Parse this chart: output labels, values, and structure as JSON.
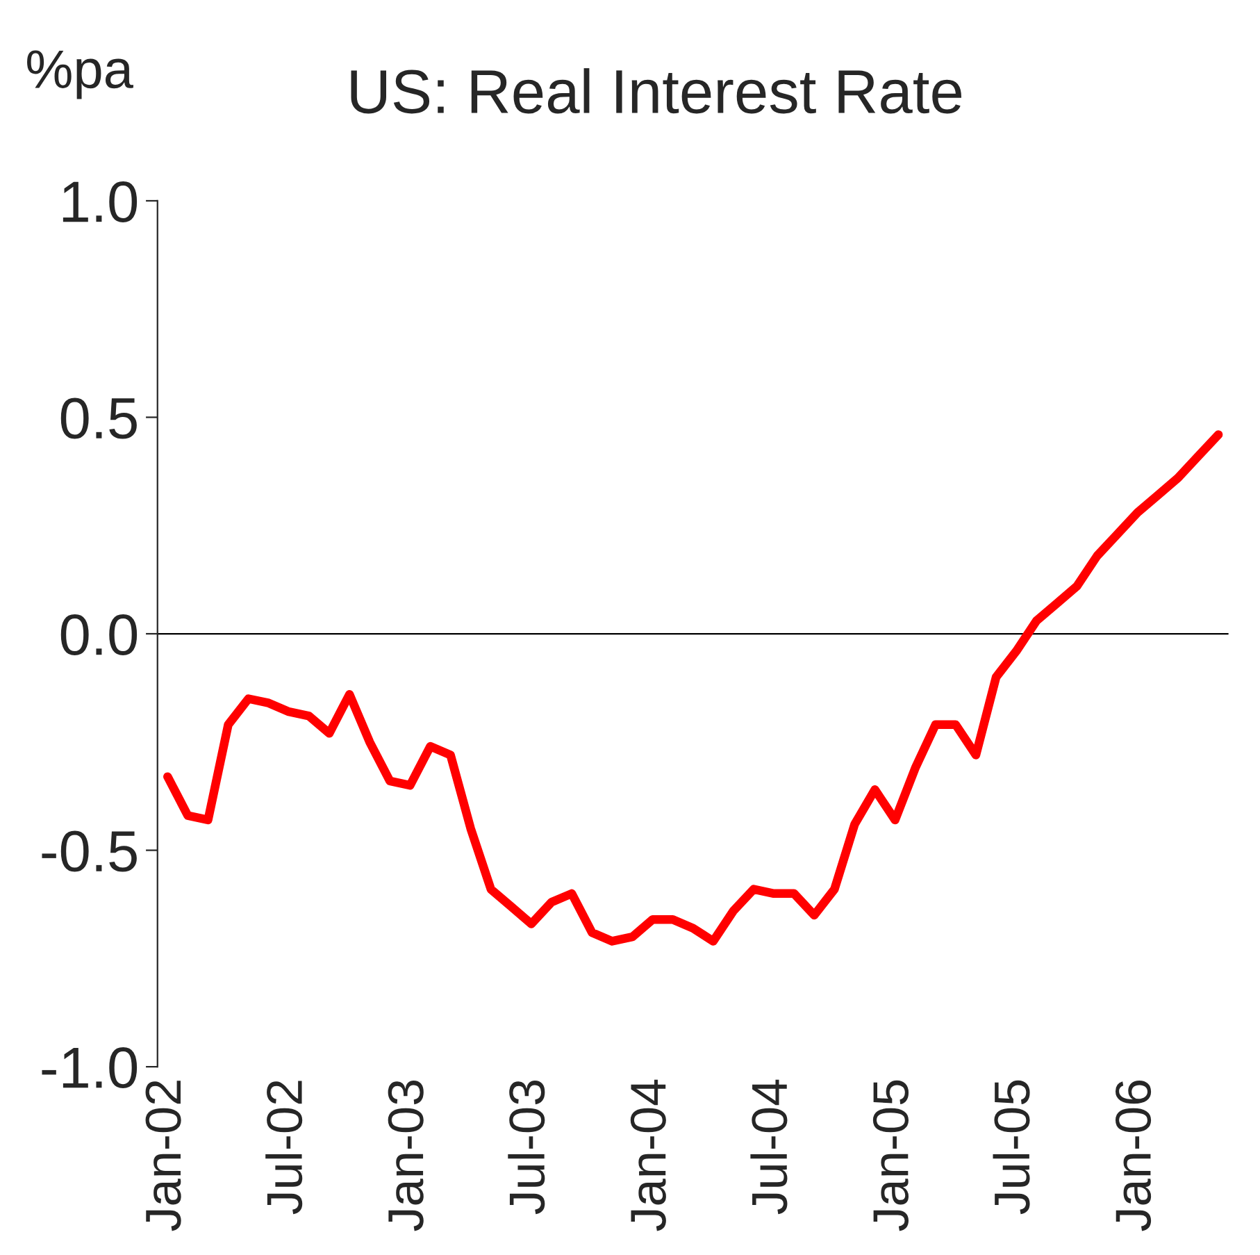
{
  "chart_data": {
    "type": "line",
    "title": "US: Real Interest Rate",
    "ylabel": "%pa",
    "categories": [
      "Jan-02",
      null,
      null,
      null,
      null,
      null,
      "Jul-02",
      null,
      null,
      null,
      null,
      null,
      "Jan-03",
      null,
      null,
      null,
      null,
      null,
      "Jul-03",
      null,
      null,
      null,
      null,
      null,
      "Jan-04",
      null,
      null,
      null,
      null,
      null,
      "Jul-04",
      null,
      null,
      null,
      null,
      null,
      "Jan-05",
      null,
      null,
      null,
      null,
      null,
      "Jul-05",
      null,
      null,
      null,
      null,
      null,
      "Jan-06",
      null,
      null,
      null,
      null
    ],
    "series": [
      {
        "color": "#ff0000",
        "values": [
          -0.33,
          -0.42,
          -0.43,
          -0.21,
          -0.15,
          -0.16,
          -0.18,
          -0.19,
          -0.23,
          -0.14,
          -0.25,
          -0.34,
          -0.35,
          -0.26,
          -0.28,
          -0.45,
          -0.59,
          -0.63,
          -0.67,
          -0.62,
          -0.6,
          -0.69,
          -0.71,
          -0.7,
          -0.66,
          -0.66,
          -0.68,
          -0.71,
          -0.64,
          -0.59,
          -0.6,
          -0.6,
          -0.65,
          -0.59,
          -0.44,
          -0.36,
          -0.43,
          -0.31,
          -0.21,
          -0.21,
          -0.28,
          -0.1,
          -0.04,
          0.03,
          0.07,
          0.11,
          0.18,
          0.23,
          0.28,
          0.32,
          0.36,
          0.41,
          0.46
        ]
      }
    ],
    "ylim": [
      -1.0,
      1.0
    ],
    "yticks": [
      {
        "value": 1,
        "label": "1.0"
      },
      0.5,
      {
        "value": 0,
        "label": "0.0"
      },
      -0.5,
      {
        "value": -1,
        "label": "-1.0"
      }
    ],
    "grid": false,
    "ref_lines": [
      {
        "axis": "y",
        "value": 0,
        "color": "#000000"
      }
    ],
    "legend": false,
    "marker": "none",
    "line_style": "solid"
  }
}
